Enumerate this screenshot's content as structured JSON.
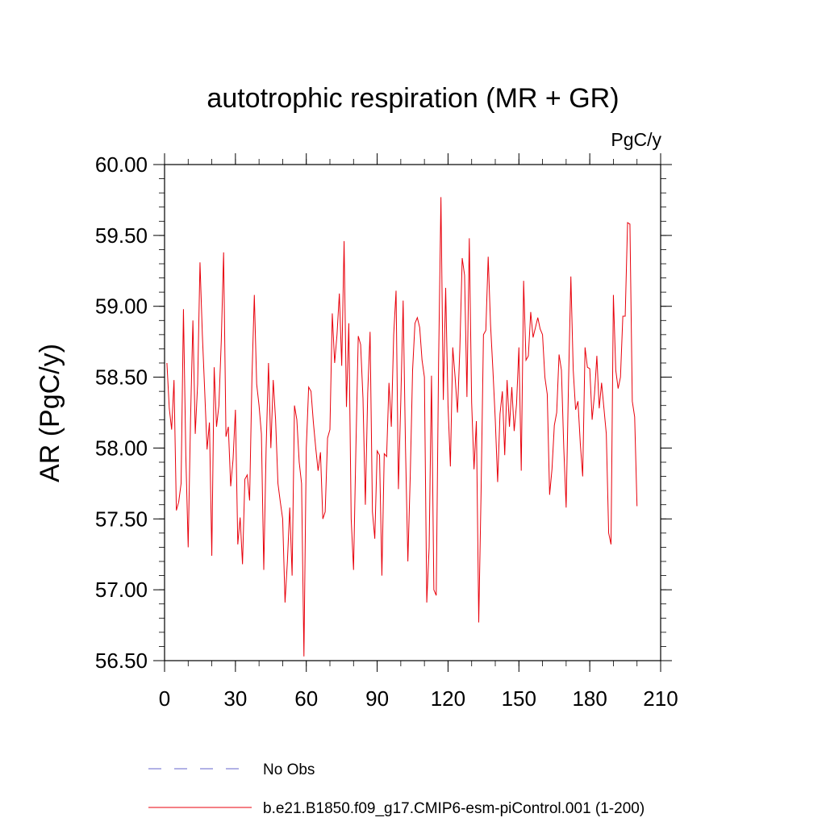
{
  "chart_data": {
    "type": "line",
    "title": "autotrophic respiration (MR + GR)",
    "units": "PgC/y",
    "ylabel": "AR  (PgC/y)",
    "xlabel": "",
    "xlim": [
      0,
      210
    ],
    "ylim": [
      56.5,
      60.0
    ],
    "xticks": [
      0,
      30,
      60,
      90,
      120,
      150,
      180,
      210
    ],
    "xtick_labels": [
      "0",
      "30",
      "60",
      "90",
      "120",
      "150",
      "180",
      "210"
    ],
    "yticks": [
      56.5,
      57.0,
      57.5,
      58.0,
      58.5,
      59.0,
      59.5,
      60.0
    ],
    "ytick_labels": [
      "56.50",
      "57.00",
      "57.50",
      "58.00",
      "58.50",
      "59.00",
      "59.50",
      "60.00"
    ],
    "grid": false,
    "legend_position": "bottom",
    "series": [
      {
        "name": "No Obs",
        "color": "#6666cc",
        "dash": true,
        "x": [],
        "values": []
      },
      {
        "name": "b.e21.B1850.f09_g17.CMIP6-esm-piControl.001 (1-200)",
        "color": "#e8000b",
        "dash": false,
        "x": [
          1,
          2,
          3,
          4,
          5,
          6,
          7,
          8,
          9,
          10,
          11,
          12,
          13,
          14,
          15,
          16,
          17,
          18,
          19,
          20,
          21,
          22,
          23,
          24,
          25,
          26,
          27,
          28,
          29,
          30,
          31,
          32,
          33,
          34,
          35,
          36,
          37,
          38,
          39,
          40,
          41,
          42,
          43,
          44,
          45,
          46,
          47,
          48,
          49,
          50,
          51,
          52,
          53,
          54,
          55,
          56,
          57,
          58,
          59,
          60,
          61,
          62,
          63,
          64,
          65,
          66,
          67,
          68,
          69,
          70,
          71,
          72,
          73,
          74,
          75,
          76,
          77,
          78,
          79,
          80,
          81,
          82,
          83,
          84,
          85,
          86,
          87,
          88,
          89,
          90,
          91,
          92,
          93,
          94,
          95,
          96,
          97,
          98,
          99,
          100,
          101,
          102,
          103,
          104,
          105,
          106,
          107,
          108,
          109,
          110,
          111,
          112,
          113,
          114,
          115,
          116,
          117,
          118,
          119,
          120,
          121,
          122,
          123,
          124,
          125,
          126,
          127,
          128,
          129,
          130,
          131,
          132,
          133,
          134,
          135,
          136,
          137,
          138,
          139,
          140,
          141,
          142,
          143,
          144,
          145,
          146,
          147,
          148,
          149,
          150,
          151,
          152,
          153,
          154,
          155,
          156,
          157,
          158,
          159,
          160,
          161,
          162,
          163,
          164,
          165,
          166,
          167,
          168,
          169,
          170,
          171,
          172,
          173,
          174,
          175,
          176,
          177,
          178,
          179,
          180,
          181,
          182,
          183,
          184,
          185,
          186,
          187,
          188,
          189,
          190,
          191,
          192,
          193,
          194,
          195,
          196,
          197,
          198,
          199,
          200
        ],
        "values": [
          58.6,
          58.28,
          58.13,
          58.48,
          57.56,
          57.62,
          57.75,
          58.98,
          57.95,
          57.3,
          58.2,
          58.9,
          58.1,
          58.45,
          59.31,
          58.8,
          58.4,
          57.99,
          58.18,
          57.24,
          58.57,
          58.15,
          58.3,
          58.75,
          59.38,
          58.08,
          58.15,
          57.73,
          57.92,
          58.27,
          57.32,
          57.51,
          57.18,
          57.78,
          57.81,
          57.63,
          58.5,
          59.08,
          58.45,
          58.3,
          58.1,
          57.14,
          58.0,
          58.6,
          58.0,
          58.48,
          58.2,
          57.75,
          57.62,
          57.5,
          56.91,
          57.2,
          57.58,
          57.1,
          58.3,
          58.2,
          57.9,
          57.75,
          56.53,
          58.0,
          58.43,
          58.4,
          58.18,
          58.0,
          57.84,
          57.97,
          57.5,
          57.55,
          58.07,
          58.13,
          58.95,
          58.6,
          58.8,
          59.09,
          58.58,
          59.46,
          58.29,
          58.88,
          57.5,
          57.14,
          58.0,
          58.79,
          58.73,
          58.35,
          57.6,
          58.39,
          58.82,
          57.55,
          57.36,
          57.98,
          57.95,
          57.1,
          57.96,
          57.94,
          58.46,
          58.15,
          58.8,
          59.11,
          57.71,
          58.33,
          59.04,
          58.0,
          57.2,
          57.8,
          58.55,
          58.88,
          58.92,
          58.85,
          58.62,
          58.5,
          56.91,
          57.3,
          58.51,
          57.0,
          56.96,
          58.6,
          59.77,
          58.34,
          59.13,
          58.3,
          57.87,
          58.71,
          58.5,
          58.25,
          58.7,
          59.34,
          59.22,
          58.36,
          59.48,
          58.32,
          57.85,
          58.19,
          56.77,
          57.7,
          58.8,
          58.83,
          59.35,
          58.87,
          58.55,
          58.2,
          57.76,
          58.24,
          58.4,
          57.95,
          58.48,
          58.15,
          58.43,
          58.12,
          58.31,
          58.71,
          57.84,
          59.18,
          58.62,
          58.65,
          58.96,
          58.78,
          58.85,
          58.92,
          58.84,
          58.8,
          58.5,
          58.38,
          57.67,
          57.85,
          58.16,
          58.25,
          58.66,
          58.55,
          58.0,
          57.58,
          58.46,
          59.21,
          58.55,
          58.27,
          58.33,
          58.03,
          57.8,
          58.71,
          58.57,
          58.56,
          58.2,
          58.38,
          58.65,
          58.28,
          58.46,
          58.28,
          58.1,
          57.4,
          57.32,
          59.08,
          58.55,
          58.42,
          58.5,
          58.93,
          58.93,
          59.59,
          59.58,
          58.33,
          58.22,
          57.59
        ]
      }
    ]
  }
}
